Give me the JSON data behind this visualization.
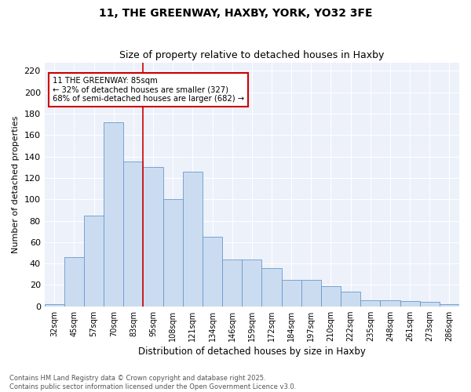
{
  "title1": "11, THE GREENWAY, HAXBY, YORK, YO32 3FE",
  "title2": "Size of property relative to detached houses in Haxby",
  "xlabel": "Distribution of detached houses by size in Haxby",
  "ylabel": "Number of detached properties",
  "categories": [
    "32sqm",
    "45sqm",
    "57sqm",
    "70sqm",
    "83sqm",
    "95sqm",
    "108sqm",
    "121sqm",
    "134sqm",
    "146sqm",
    "159sqm",
    "172sqm",
    "184sqm",
    "197sqm",
    "210sqm",
    "222sqm",
    "235sqm",
    "248sqm",
    "261sqm",
    "273sqm",
    "286sqm"
  ],
  "bar_values": [
    2,
    46,
    85,
    172,
    135,
    130,
    100,
    126,
    65,
    44,
    44,
    36,
    25,
    25,
    19,
    14,
    6,
    6,
    5,
    4,
    2
  ],
  "bar_color": "#ccdcf0",
  "bar_edge_color": "#6699cc",
  "bg_color": "#edf1fa",
  "grid_color": "#ffffff",
  "red_line_index": 4.5,
  "annotation_text": "11 THE GREENWAY: 85sqm\n← 32% of detached houses are smaller (327)\n68% of semi-detached houses are larger (682) →",
  "annotation_box_color": "#ffffff",
  "annotation_box_edge": "#cc0000",
  "footer1": "Contains HM Land Registry data © Crown copyright and database right 2025.",
  "footer2": "Contains public sector information licensed under the Open Government Licence v3.0.",
  "ylim": [
    0,
    228
  ],
  "yticks": [
    0,
    20,
    40,
    60,
    80,
    100,
    120,
    140,
    160,
    180,
    200,
    220
  ]
}
